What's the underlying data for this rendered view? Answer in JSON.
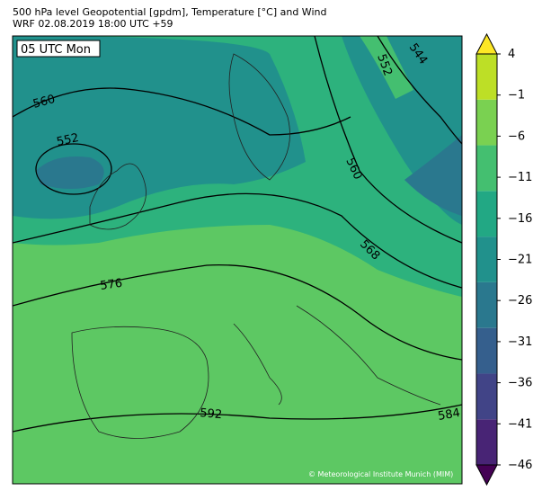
{
  "header": {
    "title": "500 hPa level Geopotential [gpdm], Temperature [°C] and Wind",
    "subtitle": "WRF 02.08.2019 18:00 UTC +59"
  },
  "map": {
    "time_label": "05 UTC Mon",
    "credit": "© Meteorological Institute Munich (MIM)",
    "contour_labels": [
      560,
      552,
      552,
      544,
      560,
      568,
      576,
      592,
      584
    ]
  },
  "colorbar": {
    "ticks": [
      4,
      {
        "value": -1,
        "label": "−1"
      },
      {
        "value": -6,
        "label": "−6"
      },
      {
        "value": -11,
        "label": "−11"
      },
      {
        "value": -16,
        "label": "−16"
      },
      {
        "value": -21,
        "label": "−21"
      },
      {
        "value": -26,
        "label": "−26"
      },
      {
        "value": -31,
        "label": "−31"
      },
      {
        "value": -36,
        "label": "−36"
      },
      {
        "value": -41,
        "label": "−41"
      },
      {
        "value": -46,
        "label": "−46"
      }
    ],
    "lim": [
      -46,
      4
    ],
    "colors": [
      "#440154",
      "#482475",
      "#414487",
      "#355f8d",
      "#2a788e",
      "#21918c",
      "#22a884",
      "#44bf70",
      "#7ad151",
      "#bddf26",
      "#fde725"
    ]
  }
}
